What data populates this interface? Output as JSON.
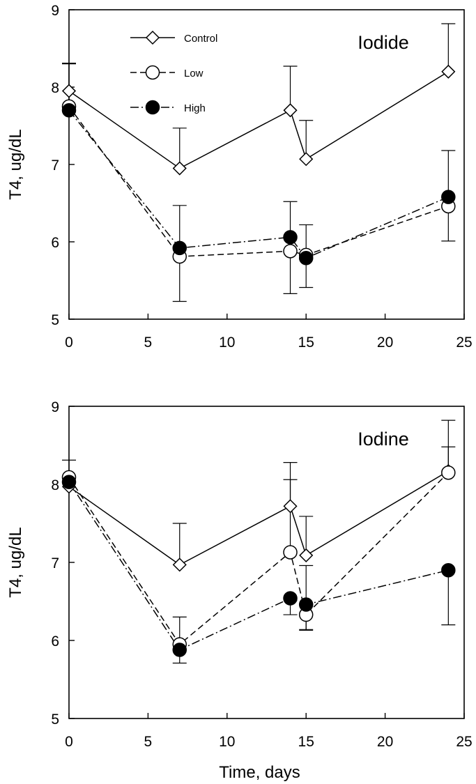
{
  "chart_data": [
    {
      "type": "line",
      "title": "Iodide",
      "xlabel": "",
      "ylabel": "T4, ug/dL",
      "xlim": [
        0,
        25
      ],
      "ylim": [
        5,
        9
      ],
      "xticks": [
        0,
        5,
        10,
        15,
        20,
        25
      ],
      "yticks": [
        5,
        6,
        7,
        8,
        9
      ],
      "grid": false,
      "legend": "top-left",
      "series": [
        {
          "name": "Control",
          "marker": "diamond-open",
          "line": "solid",
          "x": [
            0,
            7,
            14,
            15,
            24
          ],
          "y": [
            7.95,
            6.95,
            7.7,
            7.07,
            8.2
          ],
          "err_upper": [
            0.36,
            0.52,
            0.57,
            0.5,
            0.62
          ]
        },
        {
          "name": "Low",
          "marker": "circle-open",
          "line": "dashed",
          "x": [
            0,
            7,
            14,
            15,
            24
          ],
          "y": [
            7.75,
            5.81,
            5.88,
            5.83,
            6.46
          ],
          "err_lower": [
            0.0,
            0.58,
            0.55,
            0.42,
            0.45
          ]
        },
        {
          "name": "High",
          "marker": "circle-filled",
          "line": "dashdot",
          "x": [
            0,
            7,
            14,
            15,
            24
          ],
          "y": [
            7.7,
            5.92,
            6.06,
            5.79,
            6.58
          ],
          "err_upper": [
            0.6,
            0.55,
            0.46,
            0.43,
            0.6
          ]
        }
      ]
    },
    {
      "type": "line",
      "title": "Iodine",
      "xlabel": "Time, days",
      "ylabel": "T4, ug/dL",
      "xlim": [
        0,
        25
      ],
      "ylim": [
        5,
        9
      ],
      "xticks": [
        0,
        5,
        10,
        15,
        20,
        25
      ],
      "yticks": [
        5,
        6,
        7,
        8,
        9
      ],
      "grid": false,
      "legend": "none",
      "series": [
        {
          "name": "Control",
          "marker": "diamond-open",
          "line": "solid",
          "x": [
            0,
            7,
            14,
            15,
            24
          ],
          "y": [
            7.97,
            6.97,
            7.72,
            7.09,
            8.17
          ],
          "err_upper": [
            0.34,
            0.53,
            0.56,
            0.5,
            0.65
          ]
        },
        {
          "name": "Low",
          "marker": "circle-open",
          "line": "dashed",
          "x": [
            0,
            7,
            14,
            15,
            24
          ],
          "y": [
            8.09,
            5.95,
            7.13,
            6.33,
            8.15
          ],
          "err_upper": [
            0.0,
            0.35,
            0.93,
            0.0,
            0.33
          ],
          "err_lower": [
            0.0,
            0.0,
            0.0,
            0.2,
            0.0
          ]
        },
        {
          "name": "High",
          "marker": "circle-filled",
          "line": "dashdot",
          "x": [
            0,
            7,
            14,
            15,
            24
          ],
          "y": [
            8.03,
            5.88,
            6.54,
            6.46,
            6.9
          ],
          "err_lower": [
            0.0,
            0.17,
            0.21,
            0.32,
            0.7
          ],
          "err_upper": [
            0.0,
            0.0,
            0.0,
            0.5,
            0.0
          ]
        }
      ]
    }
  ]
}
